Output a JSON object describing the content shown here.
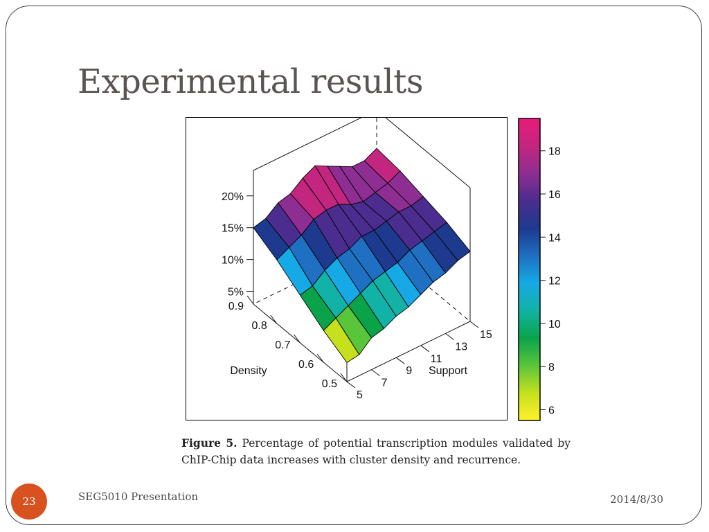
{
  "slide": {
    "title": "Experimental results",
    "page_number": "23",
    "footer_left": "SEG5010 Presentation",
    "footer_right": "2014/8/30"
  },
  "figure": {
    "caption_label": "Figure 5.",
    "caption_text": " Percentage of potential transcription modules validated by ChIP-Chip data increases with cluster density and recurrence."
  },
  "colors": {
    "accent_badge": "#d7521f",
    "title": "#5a5452",
    "colormap": [
      "#fff02a",
      "#c6e01e",
      "#59c53a",
      "#0aa34a",
      "#12b3a6",
      "#16a9e6",
      "#1f6fc2",
      "#1e3a8f",
      "#4a2d8e",
      "#8e2e92",
      "#c2267e",
      "#e81a78"
    ]
  },
  "chart_data": {
    "type": "surface3d",
    "title": "",
    "x_axis": {
      "label": "Support",
      "values": [
        5,
        6,
        7,
        8,
        9,
        10,
        11,
        12,
        13,
        14,
        15
      ],
      "tick_labels": [
        "5",
        "7",
        "9",
        "11",
        "13",
        "15"
      ]
    },
    "y_axis": {
      "label": "Density",
      "values": [
        0.5,
        0.6,
        0.7,
        0.8,
        0.9
      ],
      "tick_labels": [
        "0.5",
        "0.6",
        "0.7",
        "0.8",
        "0.9"
      ]
    },
    "z_axis": {
      "label": "",
      "tick_labels": [
        "5%",
        "10%",
        "15%",
        "20%"
      ],
      "ticks": [
        5,
        10,
        15,
        20
      ],
      "range": [
        3,
        24
      ]
    },
    "z_values_rows_by_density": [
      [
        6.0,
        6.3,
        8.0,
        8.5,
        9.5,
        10.0,
        11.0,
        12.0,
        12.5,
        13.5,
        14.0
      ],
      [
        8.0,
        9.0,
        10.0,
        11.0,
        12.0,
        12.5,
        13.0,
        14.0,
        14.5,
        15.0,
        15.5
      ],
      [
        10.5,
        11.0,
        12.5,
        13.5,
        14.0,
        15.0,
        15.0,
        15.5,
        16.0,
        16.0,
        16.5
      ],
      [
        13.0,
        14.0,
        15.0,
        16.5,
        17.0,
        17.0,
        16.0,
        15.5,
        16.0,
        16.5,
        17.5
      ],
      [
        15.0,
        15.5,
        17.0,
        17.5,
        19.0,
        20.0,
        19.0,
        18.0,
        17.0,
        17.0,
        18.0
      ]
    ],
    "colorbar": {
      "range": [
        5.5,
        19.5
      ],
      "ticks": [
        6,
        8,
        10,
        12,
        14,
        16,
        18
      ],
      "tick_labels": [
        "6",
        "8",
        "10",
        "12",
        "14",
        "16",
        "18"
      ]
    },
    "grid": false,
    "legend": "colorbar-right"
  }
}
